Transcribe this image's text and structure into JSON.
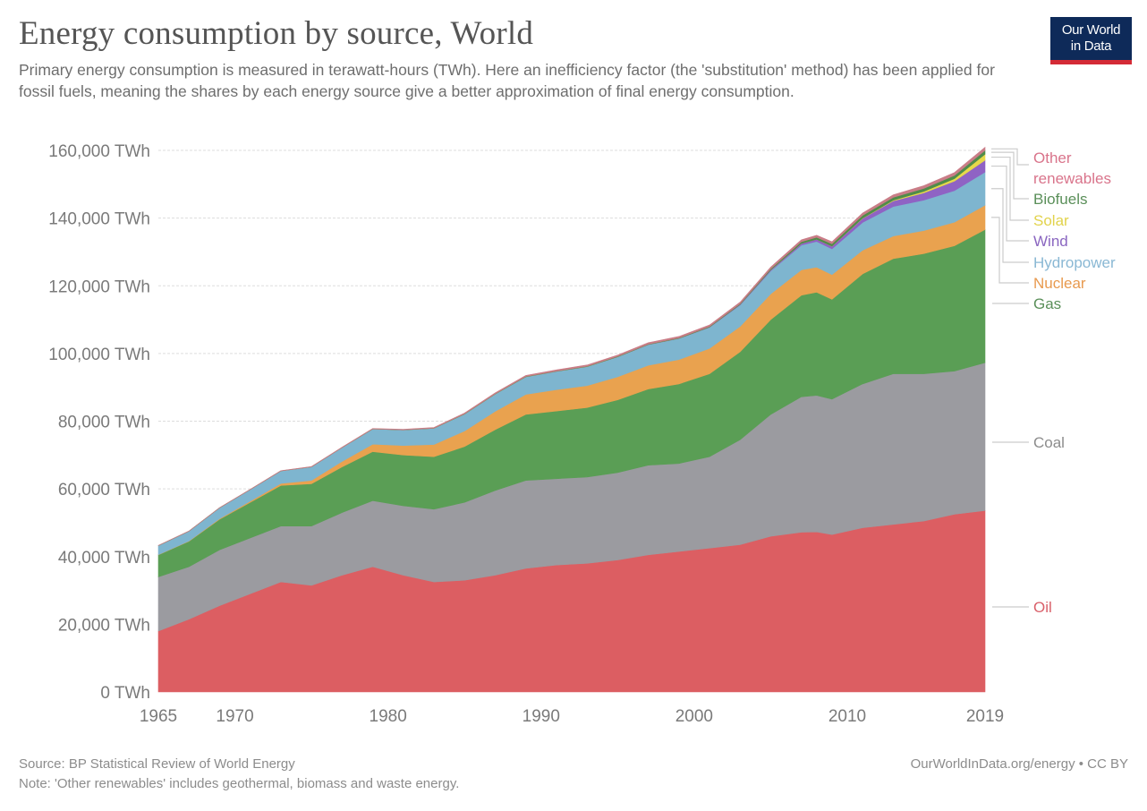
{
  "header": {
    "title": "Energy consumption by source, World",
    "subtitle": "Primary energy consumption is measured in terawatt-hours (TWh). Here an inefficiency factor (the 'substitution' method) has been applied for fossil fuels, meaning the shares by each energy source give a better approximation of final energy consumption.",
    "logo_line1": "Our World",
    "logo_line2": "in Data"
  },
  "footer": {
    "source": "Source: BP Statistical Review of World Energy",
    "note": "Note: 'Other renewables' includes geothermal, biomass and waste energy.",
    "url": "OurWorldInData.org/energy • CC BY"
  },
  "colors": {
    "logo_bg": "#0e2a59",
    "logo_bar": "#d42b36"
  },
  "chart_data": {
    "type": "area",
    "stacked": true,
    "title": "Energy consumption by source, World",
    "xlabel": "",
    "ylabel": "",
    "xlim": [
      1965,
      2019
    ],
    "ylim": [
      0,
      160000
    ],
    "grid": true,
    "legend_placement": "right",
    "x_ticks": [
      "1965",
      "1970",
      "1980",
      "1990",
      "2000",
      "2010",
      "2019"
    ],
    "y_ticks": [
      "0 TWh",
      "20,000 TWh",
      "40,000 TWh",
      "60,000 TWh",
      "80,000 TWh",
      "100,000 TWh",
      "120,000 TWh",
      "140,000 TWh",
      "160,000 TWh"
    ],
    "y_tick_values": [
      0,
      20000,
      40000,
      60000,
      80000,
      100000,
      120000,
      140000,
      160000
    ],
    "unit": "TWh",
    "x": [
      1965,
      1967,
      1969,
      1971,
      1973,
      1975,
      1977,
      1979,
      1981,
      1983,
      1985,
      1987,
      1989,
      1991,
      1993,
      1995,
      1997,
      1999,
      2001,
      2003,
      2005,
      2007,
      2008,
      2009,
      2011,
      2013,
      2015,
      2017,
      2019
    ],
    "series": [
      {
        "name": "Oil",
        "color": "#dc5e62",
        "label_color": "#d9606a",
        "values": [
          18000,
          21500,
          25500,
          29000,
          32500,
          31500,
          34500,
          37000,
          34500,
          32500,
          33000,
          34500,
          36500,
          37500,
          38000,
          39000,
          40500,
          41500,
          42500,
          43500,
          46000,
          47200,
          47300,
          46500,
          48500,
          49500,
          50500,
          52500,
          53600
        ]
      },
      {
        "name": "Coal",
        "color": "#9b9ba0",
        "label_color": "#8c8c8c",
        "values": [
          16000,
          15500,
          16500,
          16500,
          16500,
          17500,
          18500,
          19500,
          20500,
          21500,
          23000,
          25000,
          26000,
          25500,
          25500,
          25800,
          26500,
          26000,
          27000,
          31000,
          36000,
          40000,
          40300,
          40000,
          42500,
          44500,
          43500,
          42300,
          43700
        ]
      },
      {
        "name": "Gas",
        "color": "#5a9e55",
        "label_color": "#5a8f59",
        "values": [
          6500,
          7500,
          9000,
          10500,
          12000,
          12500,
          13500,
          14500,
          15000,
          15500,
          16500,
          18000,
          19500,
          20000,
          20500,
          21500,
          22500,
          23500,
          24500,
          26000,
          28000,
          30000,
          30500,
          29500,
          32500,
          34000,
          35500,
          37000,
          39300
        ]
      },
      {
        "name": "Nuclear",
        "color": "#e9a24f",
        "label_color": "#e89a4f",
        "values": [
          50,
          100,
          200,
          350,
          600,
          1000,
          1600,
          2200,
          2800,
          3600,
          4600,
          5400,
          5900,
          6300,
          6500,
          6800,
          7000,
          7200,
          7500,
          7500,
          7600,
          7500,
          7400,
          7300,
          7000,
          6700,
          6800,
          7000,
          7200
        ]
      },
      {
        "name": "Hydropower",
        "color": "#7eb5cf",
        "label_color": "#8ab8d4",
        "values": [
          2700,
          2900,
          3200,
          3450,
          3700,
          4000,
          4100,
          4500,
          4600,
          4800,
          5000,
          5100,
          5200,
          5400,
          5600,
          5900,
          6100,
          6200,
          6200,
          6300,
          6800,
          7300,
          7600,
          7600,
          8200,
          8700,
          9000,
          9300,
          9800
        ]
      },
      {
        "name": "Wind",
        "color": "#8f63c4",
        "label_color": "#8a66c0",
        "values": [
          0,
          0,
          0,
          0,
          0,
          0,
          0,
          0,
          0,
          0,
          0,
          5,
          10,
          10,
          20,
          30,
          40,
          60,
          110,
          190,
          300,
          500,
          620,
          770,
          1200,
          1660,
          2150,
          2800,
          3500
        ]
      },
      {
        "name": "Solar",
        "color": "#e6d94a",
        "label_color": "#e2d34c",
        "values": [
          0,
          0,
          0,
          0,
          0,
          0,
          0,
          0,
          0,
          0,
          0,
          0,
          0,
          0,
          0,
          0,
          1,
          1,
          2,
          3,
          5,
          10,
          15,
          25,
          80,
          210,
          420,
          740,
          1790
        ]
      },
      {
        "name": "Biofuels",
        "color": "#4f8c4a",
        "label_color": "#5a8f59",
        "values": [
          0,
          0,
          0,
          0,
          0,
          0,
          0,
          10,
          20,
          40,
          60,
          70,
          80,
          90,
          100,
          110,
          120,
          130,
          150,
          200,
          300,
          500,
          600,
          700,
          800,
          850,
          900,
          950,
          1100
        ]
      },
      {
        "name": "Other renewables",
        "color": "#c97d87",
        "label_color": "#d9748b",
        "values": [
          40,
          50,
          60,
          70,
          90,
          100,
          120,
          140,
          180,
          210,
          250,
          290,
          330,
          360,
          380,
          400,
          420,
          440,
          450,
          470,
          520,
          570,
          600,
          620,
          700,
          760,
          820,
          870,
          920
        ]
      }
    ],
    "legend": [
      {
        "label": "Other",
        "series": "Other renewables"
      },
      {
        "label": "renewables",
        "series": "Other renewables"
      },
      {
        "label": "Biofuels",
        "series": "Biofuels"
      },
      {
        "label": "Solar",
        "series": "Solar"
      },
      {
        "label": "Wind",
        "series": "Wind"
      },
      {
        "label": "Hydropower",
        "series": "Hydropower"
      },
      {
        "label": "Nuclear",
        "series": "Nuclear"
      },
      {
        "label": "Gas",
        "series": "Gas"
      },
      {
        "label": "Coal",
        "series": "Coal"
      },
      {
        "label": "Oil",
        "series": "Oil"
      }
    ]
  }
}
